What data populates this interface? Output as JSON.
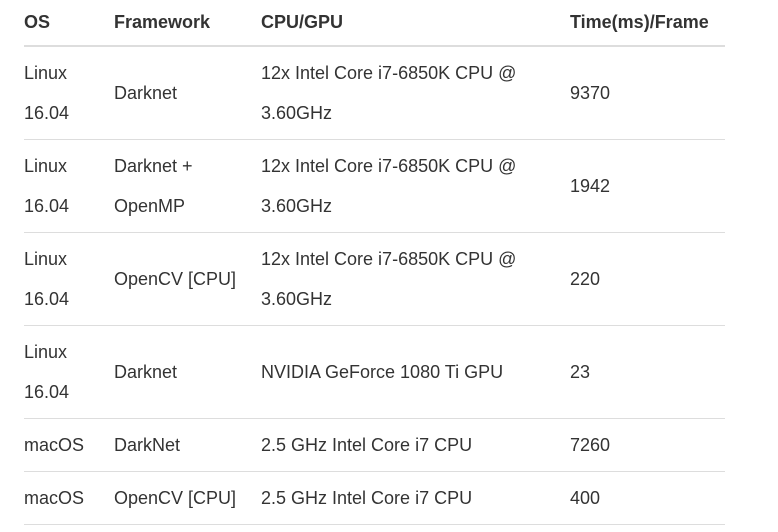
{
  "headers": [
    "OS",
    "Framework",
    "CPU/GPU",
    "Time(ms)/Frame"
  ],
  "rows": [
    [
      "Linux 16.04",
      "Darknet",
      "12x Intel Core i7-6850K CPU @ 3.60GHz",
      "9370"
    ],
    [
      "Linux 16.04",
      "Darknet + OpenMP",
      "12x Intel Core i7-6850K CPU @ 3.60GHz",
      "1942"
    ],
    [
      "Linux 16.04",
      "OpenCV [CPU]",
      "12x Intel Core i7-6850K CPU @ 3.60GHz",
      "220"
    ],
    [
      "Linux 16.04",
      "Darknet",
      "NVIDIA GeForce 1080 Ti GPU",
      "23"
    ],
    [
      "macOS",
      "DarkNet",
      "2.5 GHz Intel Core i7 CPU",
      "7260"
    ],
    [
      "macOS",
      "OpenCV [CPU]",
      "2.5 GHz Intel Core i7 CPU",
      "400"
    ]
  ]
}
